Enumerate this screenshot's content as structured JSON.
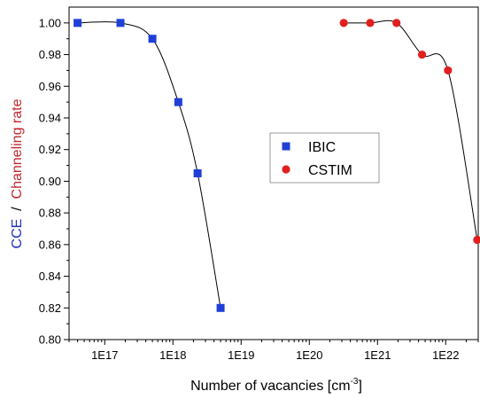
{
  "chart_data": {
    "type": "scatter",
    "x_scale": "log",
    "xlabel": "Number of vacancies [cm",
    "xlabel_sup": "-3",
    "xlabel_end": "]",
    "ylabel_parts": [
      {
        "text": "CCE",
        "color": "#1f2fbf"
      },
      {
        "text": "  /  ",
        "color": "#000000"
      },
      {
        "text": "Channeling rate",
        "color": "#c0272d"
      }
    ],
    "xlim": [
      3e+16,
      3e+22
    ],
    "ylim": [
      0.8,
      1.01
    ],
    "x_ticks": [
      {
        "value": 1e+17,
        "label": "1E17"
      },
      {
        "value": 1e+18,
        "label": "1E18"
      },
      {
        "value": 1e+19,
        "label": "1E19"
      },
      {
        "value": 1e+20,
        "label": "1E20"
      },
      {
        "value": 1e+21,
        "label": "1E21"
      },
      {
        "value": 1e+22,
        "label": "1E22"
      }
    ],
    "y_ticks": [
      {
        "value": 0.8,
        "label": "0.80"
      },
      {
        "value": 0.82,
        "label": "0.82"
      },
      {
        "value": 0.84,
        "label": "0.84"
      },
      {
        "value": 0.86,
        "label": "0.86"
      },
      {
        "value": 0.88,
        "label": "0.88"
      },
      {
        "value": 0.9,
        "label": "0.90"
      },
      {
        "value": 0.92,
        "label": "0.92"
      },
      {
        "value": 0.94,
        "label": "0.94"
      },
      {
        "value": 0.96,
        "label": "0.96"
      },
      {
        "value": 0.98,
        "label": "0.98"
      },
      {
        "value": 1.0,
        "label": "1.00"
      }
    ],
    "series": [
      {
        "name": "IBIC",
        "marker": "square",
        "color": "#1f3fd6",
        "points": [
          {
            "x": 4e+16,
            "y": 1.0
          },
          {
            "x": 1.7e+17,
            "y": 1.0
          },
          {
            "x": 5e+17,
            "y": 0.99
          },
          {
            "x": 1.2e+18,
            "y": 0.95
          },
          {
            "x": 2.3e+18,
            "y": 0.905
          },
          {
            "x": 5e+18,
            "y": 0.82
          }
        ],
        "fit_range": [
          4e+16,
          5e+18
        ]
      },
      {
        "name": "CSTIM",
        "marker": "circle",
        "color": "#e0201e",
        "points": [
          {
            "x": 3.2e+20,
            "y": 1.0
          },
          {
            "x": 7.8e+20,
            "y": 1.0
          },
          {
            "x": 1.9e+21,
            "y": 1.0
          },
          {
            "x": 4.5e+21,
            "y": 0.98
          },
          {
            "x": 1.08e+22,
            "y": 0.97
          },
          {
            "x": 2.9e+22,
            "y": 0.863
          }
        ],
        "fit_range": [
          3.2e+20,
          2.9e+22
        ]
      }
    ],
    "legend_position": "center",
    "grid": false
  }
}
